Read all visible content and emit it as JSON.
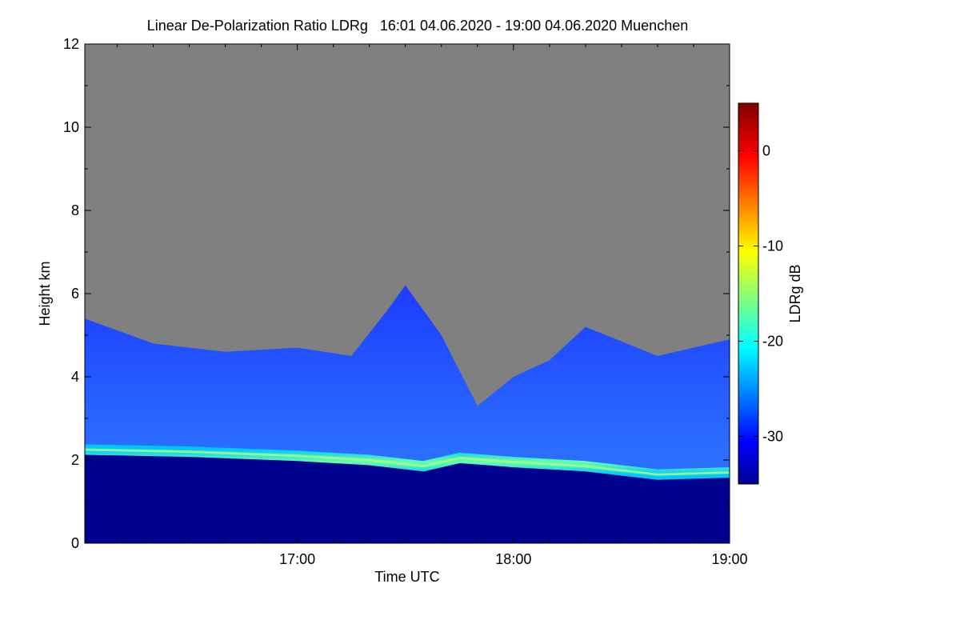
{
  "chart_data": {
    "type": "heatmap",
    "title": "Linear De-Polarization Ratio LDRg   16:01 04.06.2020 - 19:00 04.06.2020 Muenchen",
    "xlabel": "Time UTC",
    "ylabel": "Height km",
    "colorbar_label": "LDRg dB",
    "x_range": [
      "16:01",
      "19:00"
    ],
    "x_ticks": [
      "17:00",
      "18:00",
      "19:00"
    ],
    "y_range": [
      0,
      12
    ],
    "y_ticks": [
      0,
      2,
      4,
      6,
      8,
      10,
      12
    ],
    "colorbar_range": [
      -35,
      5
    ],
    "colorbar_ticks": [
      0,
      -10,
      -20,
      -30
    ],
    "colormap": "jet",
    "colors": {
      "no_data": "#808080",
      "low": "#00008f",
      "mid": "#00ffff",
      "high": "#800000"
    },
    "features": {
      "boundary_layer_top_km": [
        {
          "time": "16:01",
          "height": 2.25
        },
        {
          "time": "16:30",
          "height": 2.2
        },
        {
          "time": "17:00",
          "height": 2.1
        },
        {
          "time": "17:20",
          "height": 2.0
        },
        {
          "time": "17:35",
          "height": 1.85
        },
        {
          "time": "17:45",
          "height": 2.05
        },
        {
          "time": "18:00",
          "height": 1.95
        },
        {
          "time": "18:20",
          "height": 1.85
        },
        {
          "time": "18:40",
          "height": 1.65
        },
        {
          "time": "19:00",
          "height": 1.7
        }
      ],
      "signal_top_km": [
        {
          "time": "16:01",
          "height": 5.4
        },
        {
          "time": "16:20",
          "height": 4.8
        },
        {
          "time": "16:40",
          "height": 4.6
        },
        {
          "time": "17:00",
          "height": 4.7
        },
        {
          "time": "17:15",
          "height": 4.5
        },
        {
          "time": "17:25",
          "height": 5.6
        },
        {
          "time": "17:30",
          "height": 6.2
        },
        {
          "time": "17:40",
          "height": 5.0
        },
        {
          "time": "17:50",
          "height": 3.3
        },
        {
          "time": "18:00",
          "height": 4.0
        },
        {
          "time": "18:10",
          "height": 4.4
        },
        {
          "time": "18:20",
          "height": 5.2
        },
        {
          "time": "18:40",
          "height": 4.5
        },
        {
          "time": "19:00",
          "height": 4.9
        }
      ]
    }
  }
}
